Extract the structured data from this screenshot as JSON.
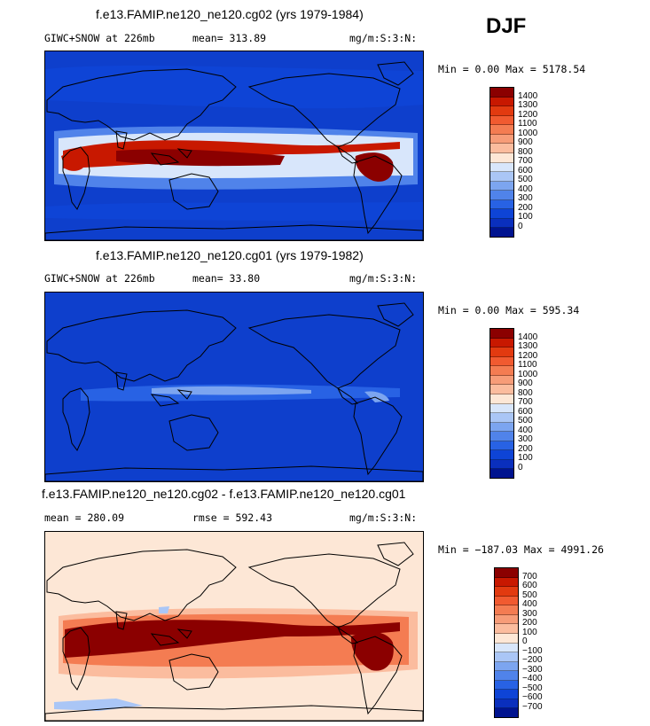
{
  "season": "DJF",
  "panels": [
    {
      "title": "f.e13.FAMIP.ne120_ne120.cg02 (yrs 1979-1984)",
      "left_label": "GIWC+SNOW at 226mb",
      "mid_label": "mean=  313.89",
      "units": "mg/m:S:3:N:",
      "minmax": "Min =    0.00 Max = 5178.54",
      "colorbar_labels": [
        "1400",
        "1300",
        "1200",
        "1100",
        "1000",
        "900",
        "800",
        "700",
        "600",
        "500",
        "400",
        "300",
        "200",
        "100",
        "0"
      ],
      "colors": [
        "#8b0000",
        "#c81800",
        "#e23a10",
        "#f15a30",
        "#f47c52",
        "#f79c78",
        "#fbbc9e",
        "#fde7d6",
        "#d8e6fb",
        "#aac6f6",
        "#7ca5f0",
        "#5083ea",
        "#2862e4",
        "#0e44d6",
        "#0a2fbd",
        "#00138f"
      ],
      "background": "#0e3fcc",
      "intensity": "strong"
    },
    {
      "title": "f.e13.FAMIP.ne120_ne120.cg01 (yrs 1979-1982)",
      "left_label": "GIWC+SNOW at 226mb",
      "mid_label": "mean=   33.80",
      "units": "mg/m:S:3:N:",
      "minmax": "Min =    0.00 Max = 595.34",
      "colorbar_labels": [
        "1400",
        "1300",
        "1200",
        "1100",
        "1000",
        "900",
        "800",
        "700",
        "600",
        "500",
        "400",
        "300",
        "200",
        "100",
        "0"
      ],
      "colors": [
        "#8b0000",
        "#c81800",
        "#e23a10",
        "#f15a30",
        "#f47c52",
        "#f79c78",
        "#fbbc9e",
        "#fde7d6",
        "#d8e6fb",
        "#aac6f6",
        "#7ca5f0",
        "#5083ea",
        "#2862e4",
        "#0e44d6",
        "#0a2fbd",
        "#00138f"
      ],
      "background": "#0e3fcc",
      "intensity": "weak"
    },
    {
      "title": "f.e13.FAMIP.ne120_ne120.cg02 - f.e13.FAMIP.ne120_ne120.cg01",
      "left_label": "mean = 280.09",
      "mid_label": "rmse = 592.43",
      "units": "mg/m:S:3:N:",
      "minmax": "Min = −187.03 Max = 4991.26",
      "colorbar_labels": [
        "700",
        "600",
        "500",
        "400",
        "300",
        "200",
        "100",
        "0",
        "−100",
        "−200",
        "−300",
        "−400",
        "−500",
        "−600",
        "−700"
      ],
      "colors": [
        "#8b0000",
        "#c81800",
        "#e23a10",
        "#f15a30",
        "#f47c52",
        "#f79c78",
        "#fbbc9e",
        "#fde7d6",
        "#d8e6fb",
        "#aac6f6",
        "#7ca5f0",
        "#5083ea",
        "#2862e4",
        "#0e44d6",
        "#0a2fbd",
        "#00138f"
      ],
      "background": "#fde7d6",
      "intensity": "diff"
    }
  ],
  "chart_data": {
    "type": "heatmap",
    "title": "DJF",
    "variable": "GIWC+SNOW at 226mb",
    "units": "mg/m:S:3:N:",
    "panels": [
      {
        "name": "f.e13.FAMIP.ne120_ne120.cg02 (yrs 1979-1984)",
        "mean": 313.89,
        "min": 0.0,
        "max": 5178.54,
        "levels": [
          0,
          100,
          200,
          300,
          400,
          500,
          600,
          700,
          800,
          900,
          1000,
          1100,
          1200,
          1300,
          1400
        ]
      },
      {
        "name": "f.e13.FAMIP.ne120_ne120.cg01 (yrs 1979-1982)",
        "mean": 33.8,
        "min": 0.0,
        "max": 595.34,
        "levels": [
          0,
          100,
          200,
          300,
          400,
          500,
          600,
          700,
          800,
          900,
          1000,
          1100,
          1200,
          1300,
          1400
        ]
      },
      {
        "name": "f.e13.FAMIP.ne120_ne120.cg02 - f.e13.FAMIP.ne120_ne120.cg01",
        "mean": 280.09,
        "rmse": 592.43,
        "min": -187.03,
        "max": 4991.26,
        "levels": [
          -700,
          -600,
          -500,
          -400,
          -300,
          -200,
          -100,
          0,
          100,
          200,
          300,
          400,
          500,
          600,
          700
        ]
      }
    ]
  }
}
